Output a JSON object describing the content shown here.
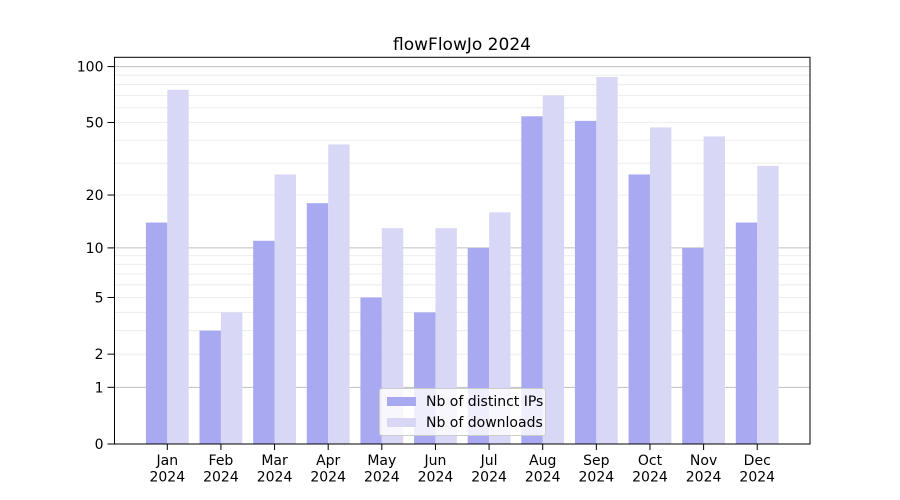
{
  "title": "flowFlowJo 2024",
  "legend": {
    "position": "lower center",
    "items": [
      {
        "label": "Nb of distinct IPs",
        "color": "#a9a9f2"
      },
      {
        "label": "Nb of downloads",
        "color": "#d8d8f6"
      }
    ]
  },
  "axes": {
    "y_tick_labels": [
      "100",
      "50",
      "20",
      "10",
      "5",
      "2",
      "1",
      "0"
    ],
    "x_tick_year": "2024"
  },
  "colors": {
    "bar_distinct_ips": "#a9a9f2",
    "bar_downloads": "#d8d8f6",
    "grid_major": "#c0c0c0",
    "grid_minor": "#ebebeb",
    "axis": "#000000",
    "text": "#000000",
    "background": "#ffffff"
  },
  "chart_data": {
    "type": "bar",
    "title": "flowFlowJo 2024",
    "categories": [
      "Jan 2024",
      "Feb 2024",
      "Mar 2024",
      "Apr 2024",
      "May 2024",
      "Jun 2024",
      "Jul 2024",
      "Aug 2024",
      "Sep 2024",
      "Oct 2024",
      "Nov 2024",
      "Dec 2024"
    ],
    "months": [
      "Jan",
      "Feb",
      "Mar",
      "Apr",
      "May",
      "Jun",
      "Jul",
      "Aug",
      "Sep",
      "Oct",
      "Nov",
      "Dec"
    ],
    "year": "2024",
    "series": [
      {
        "name": "Nb of distinct IPs",
        "color": "#a9a9f2",
        "values": [
          14,
          3,
          11,
          18,
          5,
          4,
          10,
          54,
          51,
          26,
          10,
          14
        ]
      },
      {
        "name": "Nb of downloads",
        "color": "#d8d8f6",
        "values": [
          75,
          4,
          26,
          38,
          13,
          13,
          16,
          70,
          88,
          47,
          42,
          29
        ]
      }
    ],
    "xlabel": "",
    "ylabel": "",
    "yscale": "log(1+y)",
    "ylim": [
      0,
      112
    ],
    "yticks": [
      0,
      1,
      2,
      5,
      10,
      20,
      50,
      100
    ],
    "grid_major": [
      1,
      10,
      100
    ],
    "grid_minor": [
      2,
      3,
      4,
      5,
      6,
      7,
      8,
      9,
      20,
      30,
      40,
      50,
      60,
      70,
      80,
      90
    ],
    "grid": "on",
    "legend_position": "lower center",
    "bar_layout": "grouped-pairs"
  }
}
